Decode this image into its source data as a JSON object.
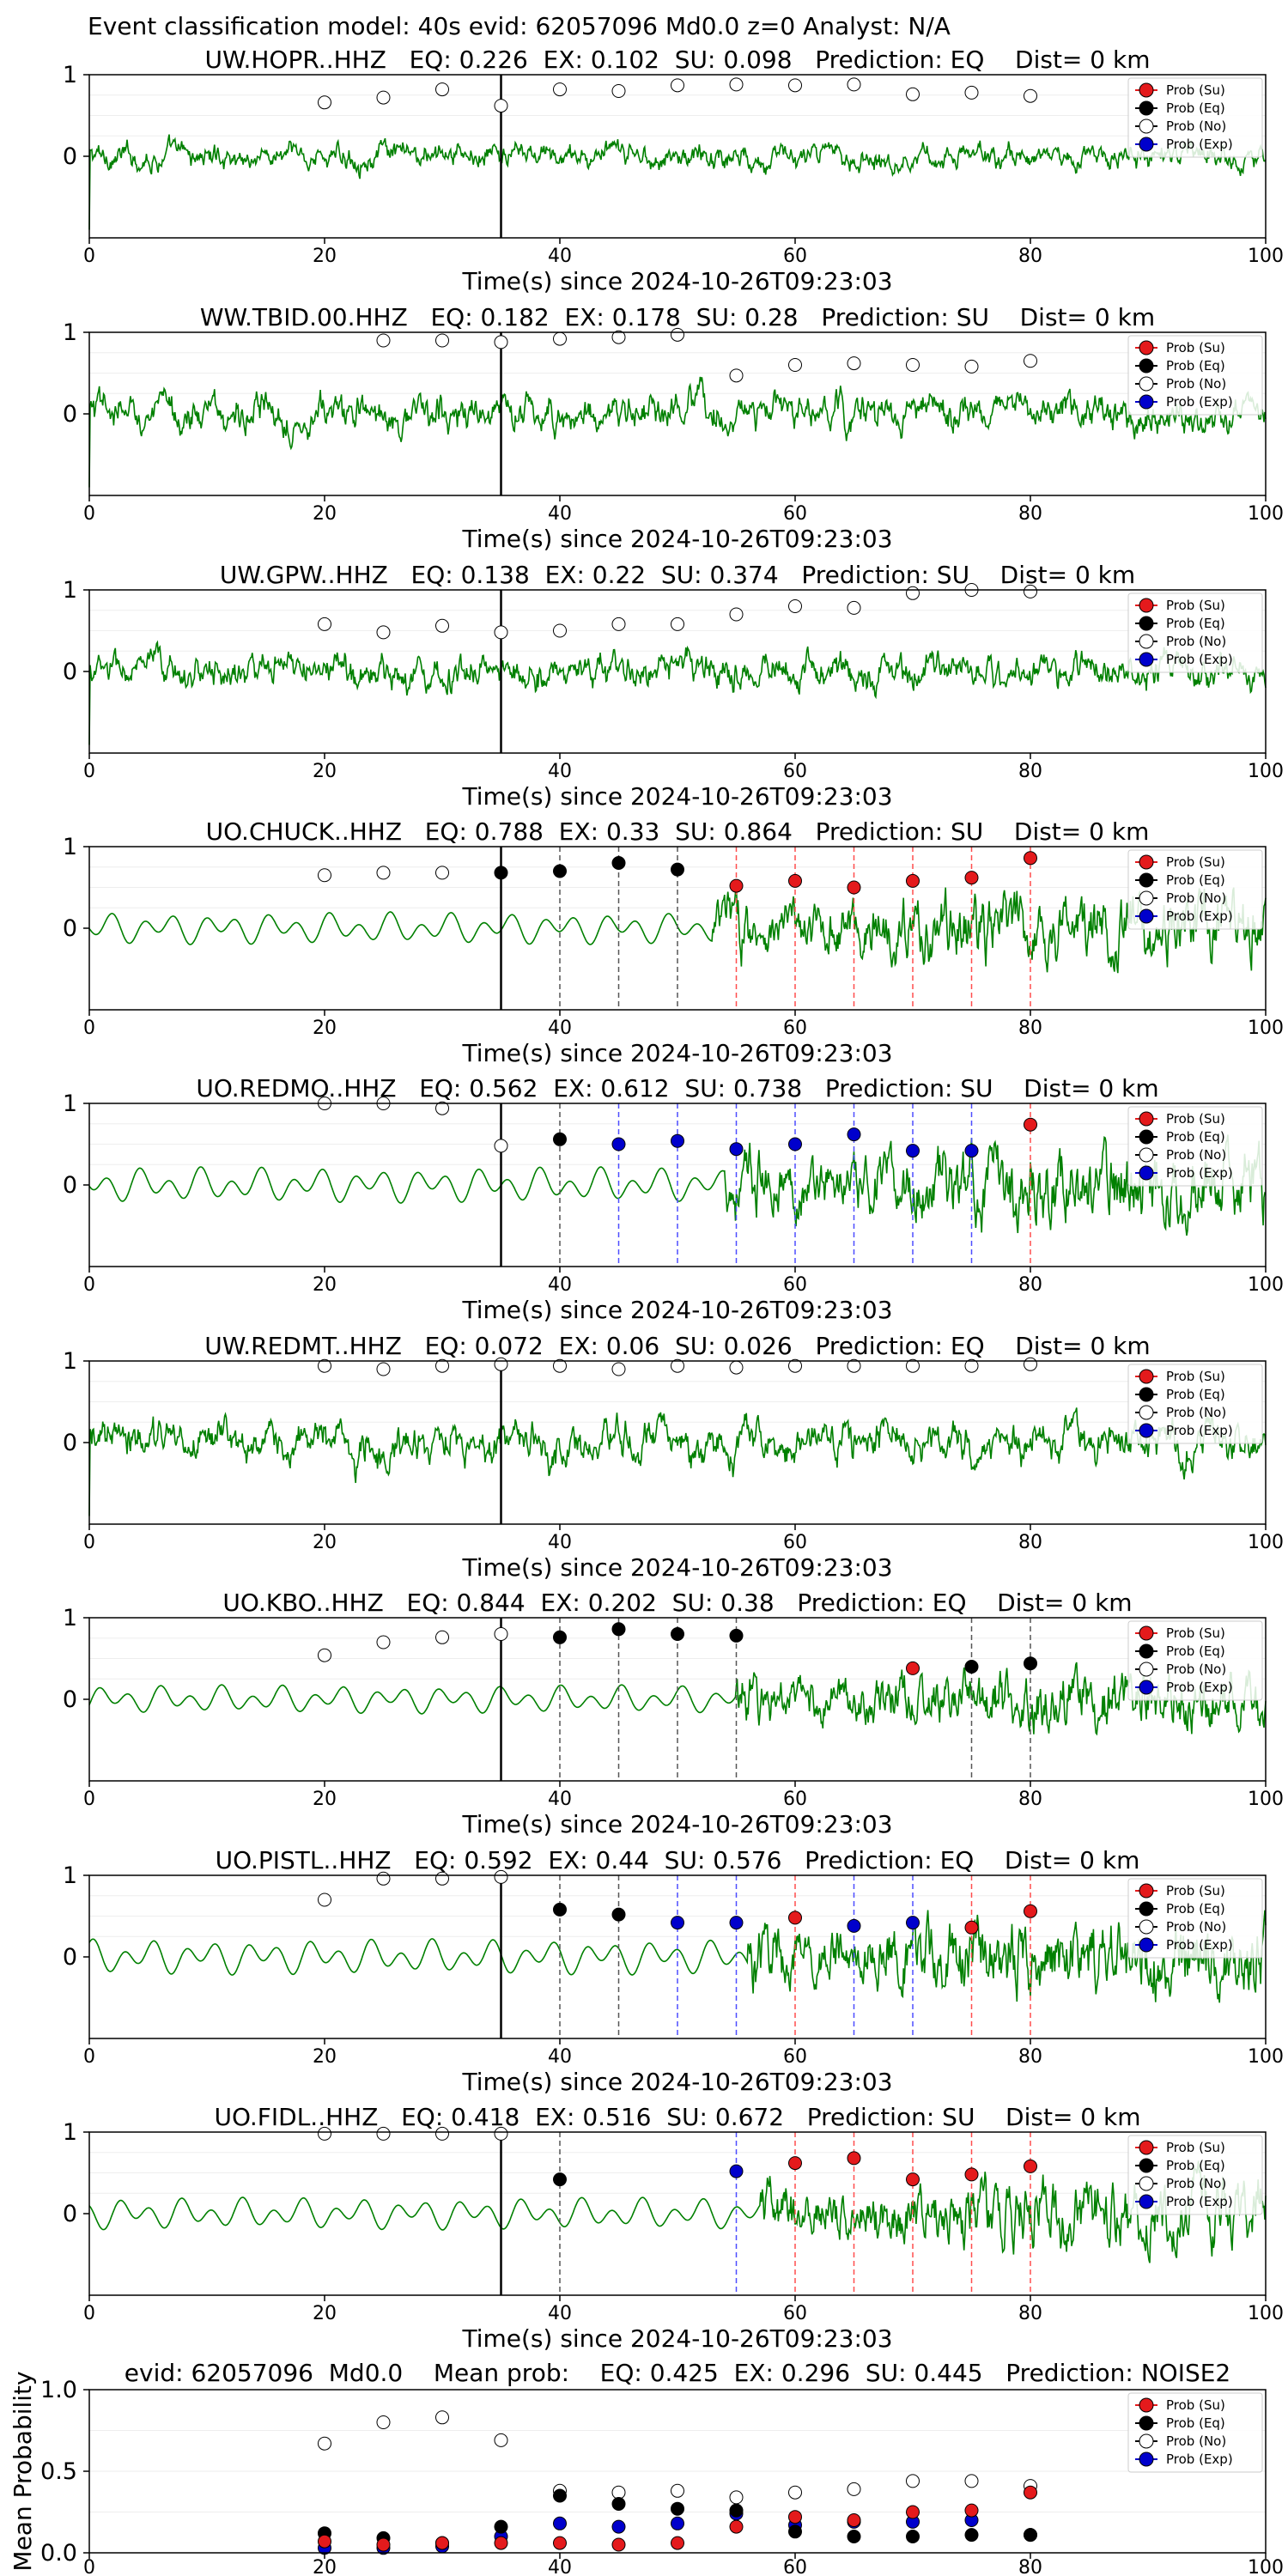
{
  "suptitle": "Event classification model: 40s evid: 62057096 Md0.0 z=0 Analyst: N/A",
  "xlabel": "Time(s) since 2024-10-26T09:23:03",
  "legend_labels": [
    "Prob (Su)",
    "Prob (Eq)",
    "Prob (No)",
    "Prob (Exp)"
  ],
  "colors": {
    "su": "#e41a1c",
    "eq": "#000000",
    "no": "#ffffff",
    "exp": "#0000cc",
    "trace": "#008000",
    "su_line": "#ff4d4d",
    "eq_line": "#555555",
    "exp_line": "#4d4dff"
  },
  "chart_data": [
    {
      "type": "line",
      "title": "UW.HOPR..HHZ   EQ: 0.226  EX: 0.102  SU: 0.098   Prediction: EQ    Dist= 0 km",
      "xlim": [
        0,
        100
      ],
      "xticks": [
        0,
        20,
        40,
        60,
        80,
        100
      ],
      "yticks": [
        0,
        1
      ],
      "pick_time": 35,
      "amp": 0.4,
      "style": "broad",
      "onset": null,
      "no": [
        [
          20,
          0.66
        ],
        [
          25,
          0.72
        ],
        [
          30,
          0.82
        ],
        [
          35,
          0.62
        ],
        [
          40,
          0.82
        ],
        [
          45,
          0.8
        ],
        [
          50,
          0.87
        ],
        [
          55,
          0.88
        ],
        [
          60,
          0.87
        ],
        [
          65,
          0.88
        ],
        [
          70,
          0.76
        ],
        [
          75,
          0.78
        ],
        [
          80,
          0.74
        ]
      ],
      "su": [],
      "eq": [],
      "exp": [],
      "markers": []
    },
    {
      "type": "line",
      "title": "WW.TBID.00.HHZ   EQ: 0.182  EX: 0.178  SU: 0.28   Prediction: SU    Dist= 0 km",
      "xlim": [
        0,
        100
      ],
      "xticks": [
        0,
        20,
        40,
        60,
        80,
        100
      ],
      "yticks": [
        0,
        1
      ],
      "pick_time": 35,
      "amp": 0.6,
      "style": "broad",
      "onset": null,
      "no": [
        [
          25,
          0.9
        ],
        [
          30,
          0.9
        ],
        [
          35,
          0.88
        ],
        [
          40,
          0.92
        ],
        [
          45,
          0.94
        ],
        [
          50,
          0.97
        ],
        [
          55,
          0.47
        ],
        [
          60,
          0.6
        ],
        [
          65,
          0.62
        ],
        [
          70,
          0.6
        ],
        [
          75,
          0.58
        ],
        [
          80,
          0.65
        ]
      ],
      "su": [],
      "eq": [],
      "exp": [],
      "markers": []
    },
    {
      "type": "line",
      "title": "UW.GPW..HHZ   EQ: 0.138  EX: 0.22  SU: 0.374   Prediction: SU    Dist= 0 km",
      "xlim": [
        0,
        100
      ],
      "xticks": [
        0,
        20,
        40,
        60,
        80,
        100
      ],
      "yticks": [
        0,
        1
      ],
      "pick_time": 35,
      "amp": 0.55,
      "style": "broad",
      "onset": null,
      "no": [
        [
          20,
          0.58
        ],
        [
          25,
          0.48
        ],
        [
          30,
          0.56
        ],
        [
          35,
          0.48
        ],
        [
          40,
          0.5
        ],
        [
          45,
          0.58
        ],
        [
          50,
          0.58
        ],
        [
          55,
          0.7
        ],
        [
          60,
          0.8
        ],
        [
          65,
          0.78
        ],
        [
          70,
          0.96
        ],
        [
          75,
          1.0
        ],
        [
          80,
          0.98
        ]
      ],
      "su": [],
      "eq": [],
      "exp": [],
      "markers": []
    },
    {
      "type": "line",
      "title": "UO.CHUCK..HHZ   EQ: 0.788  EX: 0.33  SU: 0.864   Prediction: SU    Dist= 0 km",
      "xlim": [
        0,
        100
      ],
      "xticks": [
        0,
        20,
        40,
        60,
        80,
        100
      ],
      "yticks": [
        0,
        1
      ],
      "pick_time": 35,
      "amp": 0.45,
      "style": "smooth",
      "onset": 53,
      "no": [
        [
          20,
          0.65
        ],
        [
          25,
          0.68
        ],
        [
          30,
          0.68
        ]
      ],
      "su": [
        [
          55,
          0.52
        ],
        [
          60,
          0.58
        ],
        [
          65,
          0.5
        ],
        [
          70,
          0.58
        ],
        [
          75,
          0.62
        ],
        [
          80,
          0.86
        ]
      ],
      "eq": [
        [
          35,
          0.68
        ],
        [
          40,
          0.7
        ],
        [
          45,
          0.8
        ],
        [
          50,
          0.72
        ]
      ],
      "exp": [],
      "markers": [
        [
          40,
          "eq"
        ],
        [
          45,
          "eq"
        ],
        [
          50,
          "eq"
        ],
        [
          55,
          "su"
        ],
        [
          60,
          "su"
        ],
        [
          65,
          "su"
        ],
        [
          70,
          "su"
        ],
        [
          75,
          "su"
        ],
        [
          80,
          "su"
        ]
      ]
    },
    {
      "type": "line",
      "title": "UO.REDMO..HHZ   EQ: 0.562  EX: 0.612  SU: 0.738   Prediction: SU    Dist= 0 km",
      "xlim": [
        0,
        100
      ],
      "xticks": [
        0,
        20,
        40,
        60,
        80,
        100
      ],
      "yticks": [
        0,
        1
      ],
      "pick_time": 35,
      "amp": 0.5,
      "style": "smooth",
      "onset": 54,
      "no": [
        [
          20,
          1.0
        ],
        [
          25,
          1.0
        ],
        [
          30,
          0.94
        ],
        [
          35,
          0.48
        ]
      ],
      "su": [
        [
          80,
          0.74
        ]
      ],
      "eq": [
        [
          40,
          0.56
        ]
      ],
      "exp": [
        [
          45,
          0.5
        ],
        [
          50,
          0.54
        ],
        [
          55,
          0.44
        ],
        [
          60,
          0.5
        ],
        [
          65,
          0.62
        ],
        [
          70,
          0.42
        ],
        [
          75,
          0.42
        ]
      ],
      "markers": [
        [
          40,
          "eq"
        ],
        [
          45,
          "exp"
        ],
        [
          50,
          "exp"
        ],
        [
          55,
          "exp"
        ],
        [
          60,
          "exp"
        ],
        [
          65,
          "exp"
        ],
        [
          70,
          "exp"
        ],
        [
          75,
          "exp"
        ],
        [
          80,
          "su"
        ]
      ]
    },
    {
      "type": "line",
      "title": "UW.REDMT..HHZ   EQ: 0.072  EX: 0.06  SU: 0.026   Prediction: EQ    Dist= 0 km",
      "xlim": [
        0,
        100
      ],
      "xticks": [
        0,
        20,
        40,
        60,
        80,
        100
      ],
      "yticks": [
        0,
        1
      ],
      "pick_time": 35,
      "amp": 0.65,
      "style": "broad",
      "onset": null,
      "no": [
        [
          20,
          0.94
        ],
        [
          25,
          0.9
        ],
        [
          30,
          0.94
        ],
        [
          35,
          0.96
        ],
        [
          40,
          0.94
        ],
        [
          45,
          0.9
        ],
        [
          50,
          0.94
        ],
        [
          55,
          0.92
        ],
        [
          60,
          0.94
        ],
        [
          65,
          0.94
        ],
        [
          70,
          0.94
        ],
        [
          75,
          0.94
        ],
        [
          80,
          0.96
        ]
      ],
      "su": [],
      "eq": [],
      "exp": [],
      "markers": []
    },
    {
      "type": "line",
      "title": "UO.KBO..HHZ   EQ: 0.844  EX: 0.202  SU: 0.38   Prediction: EQ    Dist= 0 km",
      "xlim": [
        0,
        100
      ],
      "xticks": [
        0,
        20,
        40,
        60,
        80,
        100
      ],
      "yticks": [
        0,
        1
      ],
      "pick_time": 35,
      "amp": 0.4,
      "style": "smooth",
      "onset": 55,
      "no": [
        [
          20,
          0.54
        ],
        [
          25,
          0.7
        ],
        [
          30,
          0.76
        ],
        [
          35,
          0.8
        ]
      ],
      "su": [
        [
          70,
          0.38
        ]
      ],
      "eq": [
        [
          40,
          0.76
        ],
        [
          45,
          0.86
        ],
        [
          50,
          0.8
        ],
        [
          55,
          0.78
        ],
        [
          75,
          0.4
        ],
        [
          80,
          0.44
        ]
      ],
      "exp": [],
      "markers": [
        [
          40,
          "eq"
        ],
        [
          45,
          "eq"
        ],
        [
          50,
          "eq"
        ],
        [
          55,
          "eq"
        ],
        [
          75,
          "eq"
        ],
        [
          80,
          "eq"
        ]
      ]
    },
    {
      "type": "line",
      "title": "UO.PISTL..HHZ   EQ: 0.592  EX: 0.44  SU: 0.576   Prediction: EQ    Dist= 0 km",
      "xlim": [
        0,
        100
      ],
      "xticks": [
        0,
        20,
        40,
        60,
        80,
        100
      ],
      "yticks": [
        0,
        1
      ],
      "pick_time": 35,
      "amp": 0.5,
      "style": "smooth",
      "onset": 56,
      "no": [
        [
          20,
          0.7
        ],
        [
          25,
          0.96
        ],
        [
          30,
          0.96
        ],
        [
          35,
          0.98
        ]
      ],
      "su": [
        [
          60,
          0.48
        ],
        [
          75,
          0.36
        ],
        [
          80,
          0.56
        ]
      ],
      "eq": [
        [
          40,
          0.58
        ],
        [
          45,
          0.52
        ]
      ],
      "exp": [
        [
          50,
          0.42
        ],
        [
          55,
          0.42
        ],
        [
          65,
          0.38
        ],
        [
          70,
          0.42
        ]
      ],
      "markers": [
        [
          40,
          "eq"
        ],
        [
          45,
          "eq"
        ],
        [
          50,
          "exp"
        ],
        [
          55,
          "exp"
        ],
        [
          60,
          "su"
        ],
        [
          65,
          "exp"
        ],
        [
          70,
          "exp"
        ],
        [
          75,
          "su"
        ],
        [
          80,
          "su"
        ]
      ]
    },
    {
      "type": "line",
      "title": "UO.FIDL..HHZ   EQ: 0.418  EX: 0.516  SU: 0.672   Prediction: SU    Dist= 0 km",
      "xlim": [
        0,
        100
      ],
      "xticks": [
        0,
        20,
        40,
        60,
        80,
        100
      ],
      "yticks": [
        0,
        1
      ],
      "pick_time": 35,
      "amp": 0.45,
      "style": "smooth",
      "onset": 57,
      "no": [
        [
          20,
          0.98
        ],
        [
          25,
          0.98
        ],
        [
          30,
          0.98
        ],
        [
          35,
          0.98
        ]
      ],
      "su": [
        [
          60,
          0.62
        ],
        [
          65,
          0.68
        ],
        [
          70,
          0.42
        ],
        [
          75,
          0.48
        ],
        [
          80,
          0.58
        ]
      ],
      "eq": [
        [
          40,
          0.42
        ]
      ],
      "exp": [
        [
          55,
          0.52
        ]
      ],
      "markers": [
        [
          40,
          "eq"
        ],
        [
          55,
          "exp"
        ],
        [
          60,
          "su"
        ],
        [
          65,
          "su"
        ],
        [
          70,
          "su"
        ],
        [
          75,
          "su"
        ],
        [
          80,
          "su"
        ]
      ]
    }
  ],
  "summary": {
    "type": "scatter",
    "title": "evid: 62057096  Md0.0    Mean prob:    EQ: 0.425  EX: 0.296  SU: 0.445   Prediction: NOISE2",
    "ylabel": "Mean Probability",
    "xlim": [
      0,
      100
    ],
    "ylim": [
      0,
      1
    ],
    "xticks": [
      0,
      20,
      40,
      60,
      80,
      100
    ],
    "yticks": [
      0.0,
      0.5,
      1.0
    ],
    "ytick_labels": [
      "0.0",
      "0.5",
      "1.0"
    ],
    "no": [
      [
        20,
        0.67
      ],
      [
        25,
        0.8
      ],
      [
        30,
        0.83
      ],
      [
        35,
        0.69
      ],
      [
        40,
        0.38
      ],
      [
        45,
        0.37
      ],
      [
        50,
        0.38
      ],
      [
        55,
        0.34
      ],
      [
        60,
        0.37
      ],
      [
        65,
        0.39
      ],
      [
        70,
        0.44
      ],
      [
        75,
        0.44
      ],
      [
        80,
        0.41
      ]
    ],
    "su": [
      [
        20,
        0.07
      ],
      [
        25,
        0.05
      ],
      [
        30,
        0.06
      ],
      [
        35,
        0.06
      ],
      [
        40,
        0.06
      ],
      [
        45,
        0.05
      ],
      [
        50,
        0.06
      ],
      [
        55,
        0.16
      ],
      [
        60,
        0.22
      ],
      [
        65,
        0.2
      ],
      [
        70,
        0.25
      ],
      [
        75,
        0.26
      ],
      [
        80,
        0.37
      ]
    ],
    "eq": [
      [
        20,
        0.12
      ],
      [
        25,
        0.09
      ],
      [
        30,
        0.06
      ],
      [
        35,
        0.16
      ],
      [
        40,
        0.35
      ],
      [
        45,
        0.3
      ],
      [
        50,
        0.27
      ],
      [
        55,
        0.26
      ],
      [
        60,
        0.13
      ],
      [
        65,
        0.1
      ],
      [
        70,
        0.1
      ],
      [
        75,
        0.11
      ],
      [
        80,
        0.11
      ]
    ],
    "exp": [
      [
        20,
        0.03
      ],
      [
        25,
        0.03
      ],
      [
        30,
        0.04
      ],
      [
        35,
        0.1
      ],
      [
        40,
        0.18
      ],
      [
        45,
        0.16
      ],
      [
        50,
        0.18
      ],
      [
        55,
        0.24
      ],
      [
        60,
        0.17
      ],
      [
        65,
        0.19
      ],
      [
        70,
        0.19
      ],
      [
        75,
        0.2
      ],
      [
        80,
        0.11
      ]
    ]
  }
}
